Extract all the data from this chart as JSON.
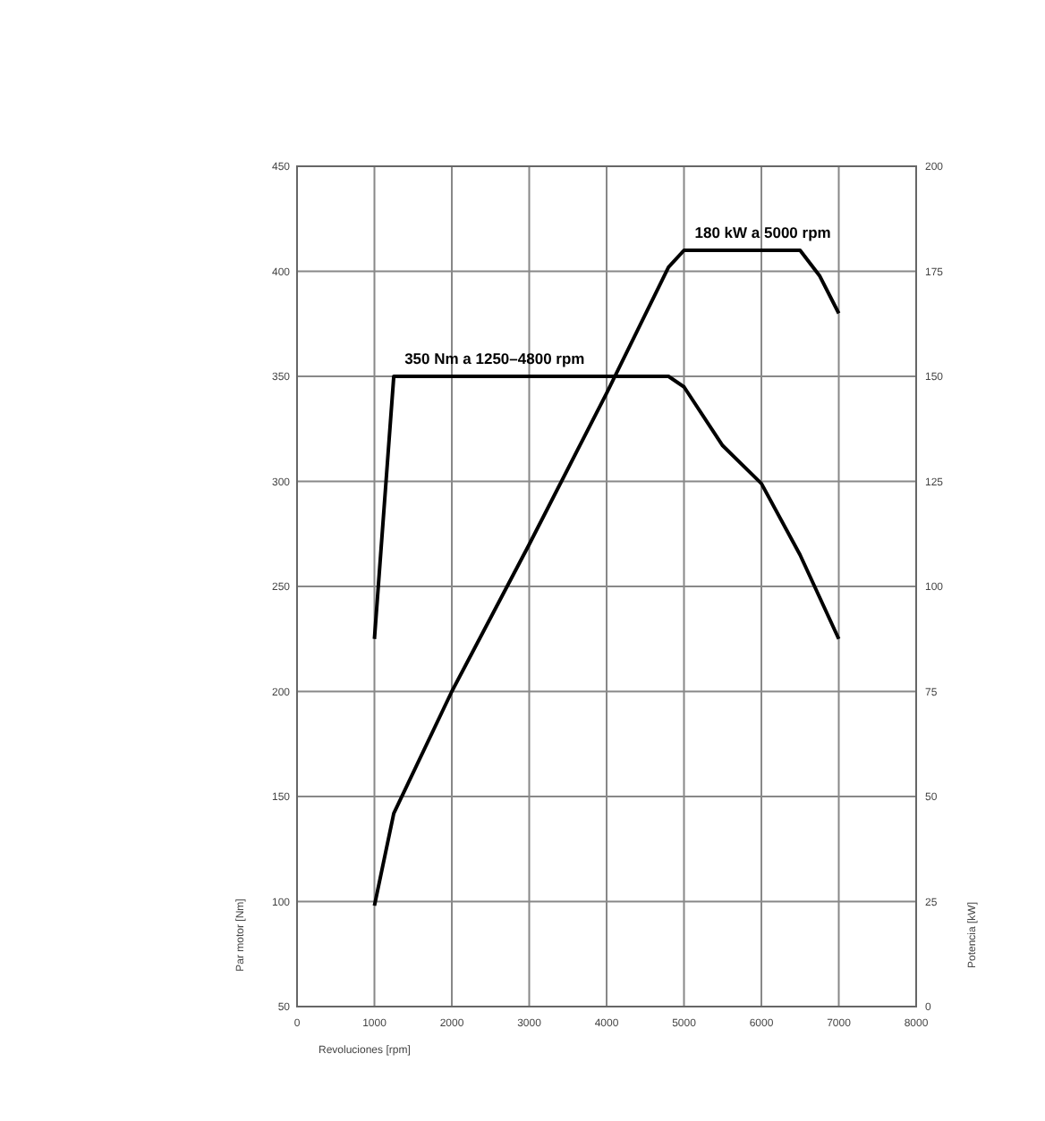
{
  "chart_data": {
    "type": "line",
    "xlabel": "Revoluciones [rpm]",
    "ylabel": "Par motor [Nm]",
    "y2label": "Potencia [kW]",
    "xlim": [
      0,
      8000
    ],
    "xticks": [
      0,
      1000,
      2000,
      3000,
      4000,
      5000,
      6000,
      7000,
      8000
    ],
    "ylim": [
      50,
      450
    ],
    "yticks": [
      50,
      100,
      150,
      200,
      250,
      300,
      350,
      400,
      450
    ],
    "y2lim": [
      0,
      200
    ],
    "y2ticks": [
      0,
      25,
      50,
      75,
      100,
      125,
      150,
      175,
      200
    ],
    "grid": true,
    "series": [
      {
        "color": "#000000",
        "x": [
          1000,
          1250,
          4800,
          5000,
          5500,
          6000,
          6500,
          7000
        ],
        "values": [
          225,
          350,
          350,
          345,
          317,
          299,
          265,
          225
        ]
      },
      {
        "color": "#000000",
        "axis": "y2",
        "x": [
          1000,
          1250,
          2000,
          3000,
          4000,
          4800,
          5000,
          6500,
          6750,
          7000
        ],
        "values": [
          24,
          46,
          75,
          110,
          146,
          176,
          180,
          180,
          174,
          165
        ]
      }
    ],
    "annotations": [
      "350 Nm a 1250–4800 rpm",
      "180 kW a 5000 rpm"
    ]
  }
}
